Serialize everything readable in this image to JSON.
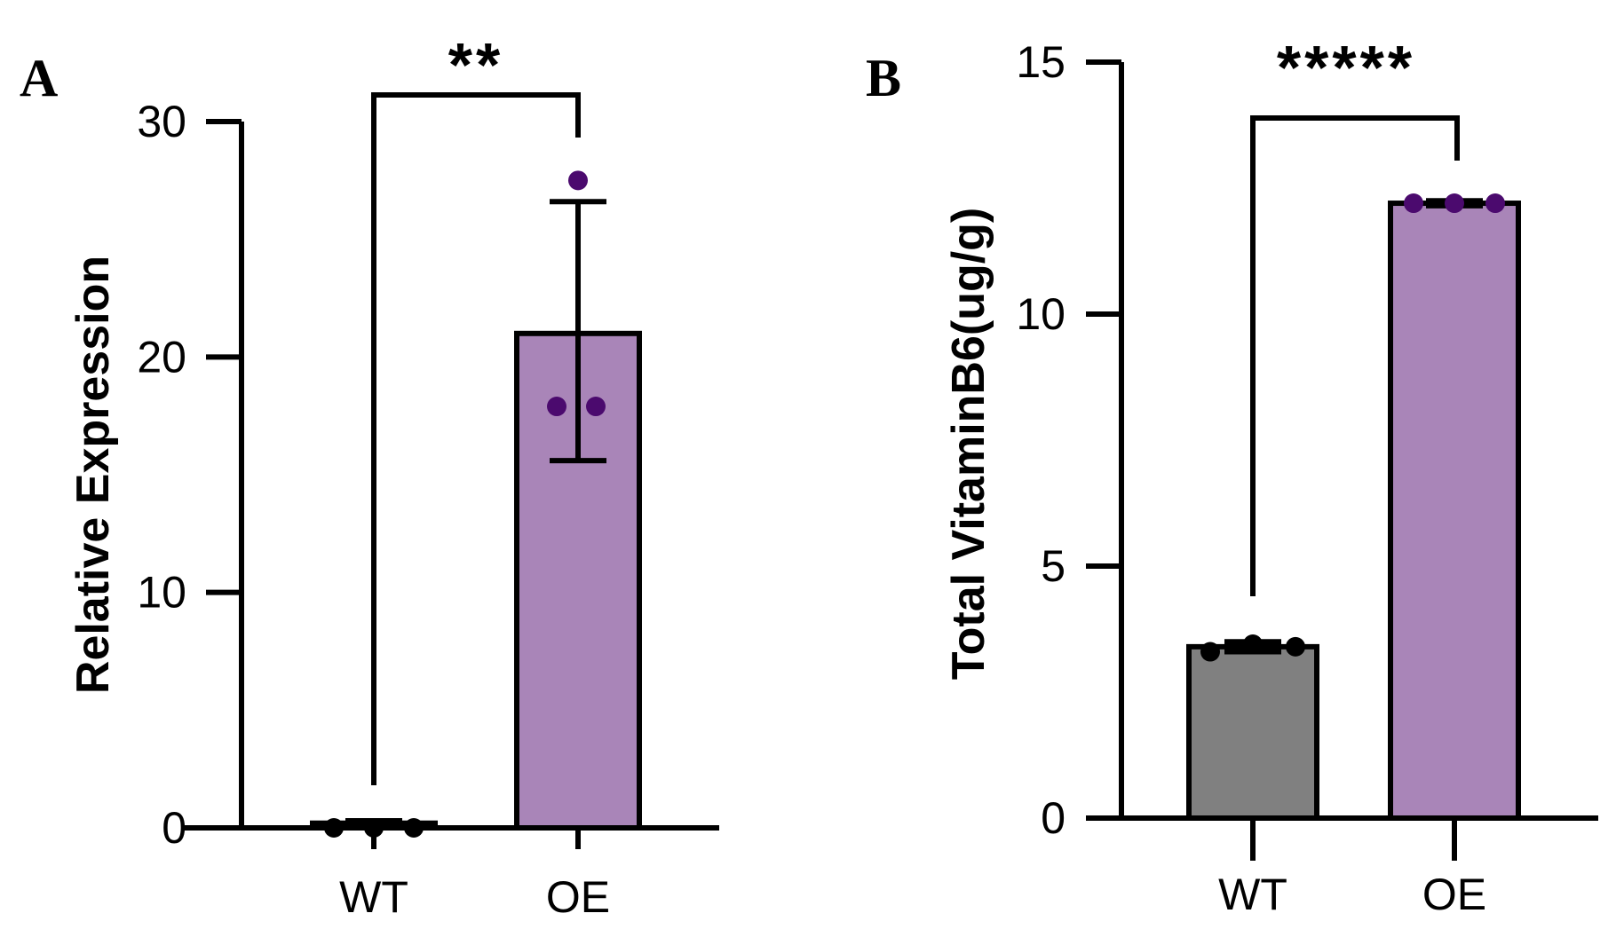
{
  "chart_data": [
    {
      "panel": "A",
      "type": "bar",
      "categories": [
        "WT",
        "OE"
      ],
      "values": [
        0.2,
        21.0
      ],
      "error": [
        {
          "low": 0.0,
          "high": 0.3
        },
        {
          "low": 15.6,
          "high": 26.6
        }
      ],
      "points": [
        [
          0.0,
          0.0,
          0.0
        ],
        [
          27.5,
          17.9,
          17.9
        ]
      ],
      "colors": [
        "#8a8a8a",
        "#a985b8"
      ],
      "point_colors": [
        "#000000",
        "#4b0a6e"
      ],
      "ylabel": "Relative Expression",
      "xlabel": "",
      "ylim": [
        0,
        30
      ],
      "yticks": [
        0,
        10,
        20,
        30
      ],
      "yticklabels": [
        "0",
        "10",
        "20",
        "30"
      ],
      "significance": "**"
    },
    {
      "panel": "B",
      "type": "bar",
      "categories": [
        "WT",
        "OE"
      ],
      "values": [
        3.4,
        12.2
      ],
      "error": [
        {
          "low": 3.3,
          "high": 3.5
        },
        {
          "low": 12.15,
          "high": 12.25
        }
      ],
      "points": [
        [
          3.3,
          3.45,
          3.4
        ],
        [
          12.2,
          12.2,
          12.2
        ]
      ],
      "colors": [
        "#808080",
        "#a985b8"
      ],
      "point_colors": [
        "#000000",
        "#4b0a6e"
      ],
      "ylabel": "Total VitaminB6(ug/g)",
      "xlabel": "",
      "ylim": [
        0,
        15
      ],
      "yticks": [
        0,
        5,
        10,
        15
      ],
      "yticklabels": [
        "0",
        "5",
        "10",
        "15"
      ],
      "significance": "*****"
    }
  ]
}
